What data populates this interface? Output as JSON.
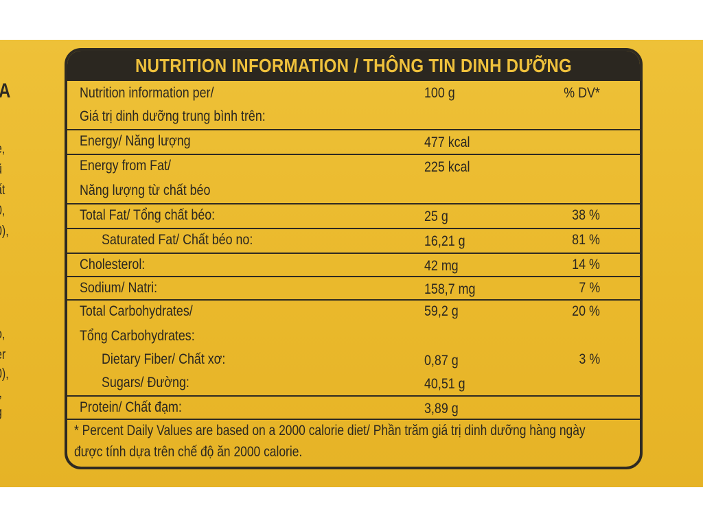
{
  "side_text": [
    "A",
    "e,",
    "ũ",
    "ất",
    "0,",
    "0),",
    "o,",
    "er",
    "0),",
    "t,",
    "g"
  ],
  "panel": {
    "title": "NUTRITION INFORMATION / THÔNG TIN DINH DƯỠNG",
    "header_row": {
      "label_line1": "Nutrition information per/",
      "label_line2": "Giá trị dinh dưỡng trung bình trên:",
      "amount": "100 g",
      "dv": "% DV*"
    },
    "rows": [
      {
        "label": "Energy/ Năng lượng",
        "amount": "477 kcal",
        "dv": ""
      },
      {
        "label": "Energy from Fat/",
        "label2": "Năng lượng từ chất béo",
        "amount": "225 kcal",
        "dv": ""
      },
      {
        "label": "Total Fat/ Tổng chất béo:",
        "amount": "25 g",
        "dv": "38 %"
      },
      {
        "label": "Saturated Fat/ Chất béo no:",
        "amount": "16,21 g",
        "dv": "81 %"
      },
      {
        "label": "Cholesterol:",
        "amount": "42 mg",
        "dv": "14 %"
      },
      {
        "label": "Sodium/ Natri:",
        "amount": "158,7 mg",
        "dv": "7 %"
      },
      {
        "label": "Total Carbohydrates/",
        "label2": "Tổng Carbohydrates:",
        "amount": "59,2 g",
        "dv": "20 %"
      },
      {
        "label": "Dietary Fiber/ Chất xơ:",
        "amount": "0,87 g",
        "dv": "3 %"
      },
      {
        "label": "Sugars/ Đường:",
        "amount": "40,51 g",
        "dv": ""
      },
      {
        "label": "Protein/ Chất đạm:",
        "amount": "3,89 g",
        "dv": ""
      }
    ],
    "footnote_line1": "* Percent Daily Values are based on a 2000 calorie diet/ Phần trăm giá trị dinh dưỡng hàng ngày",
    "footnote_line2": "được tính dựa trên chế độ ăn 2000 calorie."
  }
}
